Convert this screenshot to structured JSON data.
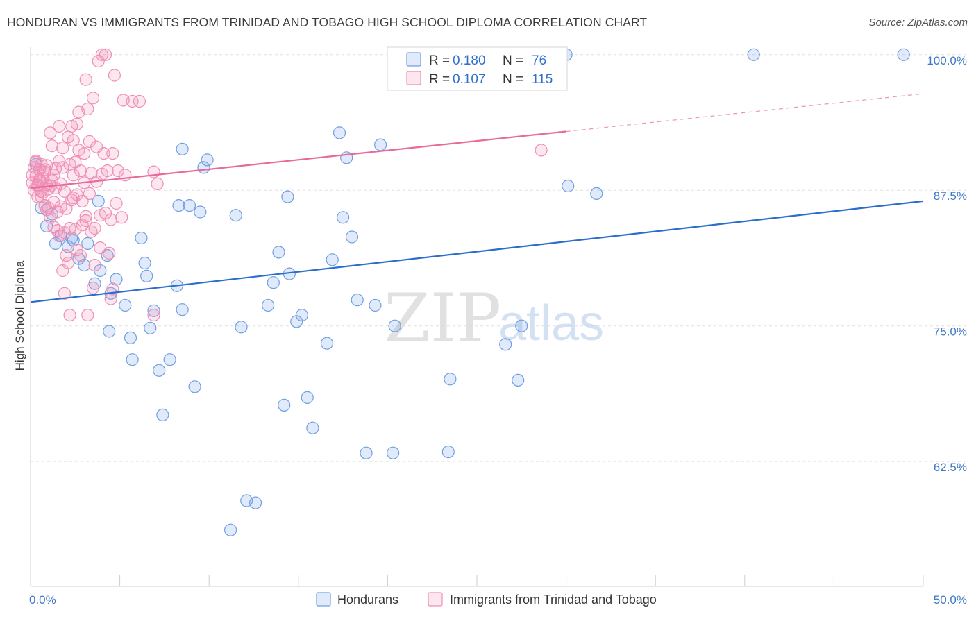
{
  "title": "HONDURAN VS IMMIGRANTS FROM TRINIDAD AND TOBAGO HIGH SCHOOL DIPLOMA CORRELATION CHART",
  "source": "Source: ZipAtlas.com",
  "watermark": {
    "zip": "ZIP",
    "atlas": "atlas"
  },
  "colors": {
    "blue_fill": "rgba(112,160,230,0.22)",
    "blue_stroke": "#6f9fe0",
    "blue_line": "#2a6dcc",
    "pink_fill": "rgba(240,140,180,0.22)",
    "pink_stroke": "#ef8fb4",
    "pink_line": "#e8699a",
    "tick_label": "#3e78c8",
    "grid": "#e0e0e0"
  },
  "legend_top": [
    {
      "r_label": "R =",
      "r_value": "0.180",
      "n_label": "N =",
      "n_value": "76"
    },
    {
      "r_label": "R =",
      "r_value": "0.107",
      "n_label": "N =",
      "n_value": "115"
    }
  ],
  "chart_data": {
    "type": "scatter",
    "title": "HONDURAN VS IMMIGRANTS FROM TRINIDAD AND TOBAGO HIGH SCHOOL DIPLOMA CORRELATION CHART",
    "xlabel": "",
    "ylabel": "High School Diploma",
    "xlim": [
      0,
      50
    ],
    "ylim": [
      51,
      101.2
    ],
    "x_ticks": [
      0,
      5,
      10,
      15,
      20,
      25,
      30,
      35,
      40,
      45,
      50
    ],
    "x_tick_labels": {
      "0": "0.0%",
      "50": "50.0%"
    },
    "y_ticks": [
      62.5,
      75.0,
      87.5,
      100.0
    ],
    "y_tick_labels": [
      "62.5%",
      "75.0%",
      "87.5%",
      "100.0%"
    ],
    "grid": true,
    "legend_position": "bottom",
    "series": [
      {
        "name": "Hondurans",
        "color": "blue",
        "trend": {
          "x": [
            0,
            50
          ],
          "y": [
            77.2,
            86.5
          ],
          "dashed_from": null
        },
        "points": [
          [
            0.3,
            89.9
          ],
          [
            0.6,
            85.9
          ],
          [
            0.9,
            84.2
          ],
          [
            1.2,
            85.3
          ],
          [
            1.4,
            82.6
          ],
          [
            1.7,
            83.3
          ],
          [
            2.1,
            82.3
          ],
          [
            2.3,
            83.1
          ],
          [
            2.7,
            81.2
          ],
          [
            3.0,
            80.6
          ],
          [
            3.2,
            82.6
          ],
          [
            3.6,
            78.9
          ],
          [
            3.9,
            80.1
          ],
          [
            4.3,
            81.5
          ],
          [
            4.4,
            74.5
          ],
          [
            4.5,
            78.0
          ],
          [
            4.8,
            79.3
          ],
          [
            5.3,
            76.9
          ],
          [
            5.6,
            73.9
          ],
          [
            5.7,
            71.9
          ],
          [
            6.2,
            83.1
          ],
          [
            6.4,
            80.8
          ],
          [
            6.5,
            79.6
          ],
          [
            6.7,
            74.8
          ],
          [
            6.9,
            76.4
          ],
          [
            7.2,
            70.9
          ],
          [
            7.4,
            66.8
          ],
          [
            7.8,
            71.9
          ],
          [
            8.2,
            78.7
          ],
          [
            8.3,
            86.1
          ],
          [
            8.5,
            76.5
          ],
          [
            8.9,
            86.1
          ],
          [
            9.2,
            69.4
          ],
          [
            9.5,
            85.5
          ],
          [
            9.7,
            89.6
          ],
          [
            9.9,
            90.3
          ],
          [
            11.5,
            85.2
          ],
          [
            11.8,
            74.9
          ],
          [
            12.1,
            58.9
          ],
          [
            12.6,
            58.7
          ],
          [
            11.2,
            56.2
          ],
          [
            13.3,
            76.9
          ],
          [
            13.6,
            79.0
          ],
          [
            13.9,
            81.8
          ],
          [
            14.2,
            67.7
          ],
          [
            14.4,
            86.9
          ],
          [
            14.5,
            79.8
          ],
          [
            14.9,
            75.4
          ],
          [
            15.2,
            76.0
          ],
          [
            15.5,
            68.4
          ],
          [
            15.8,
            65.6
          ],
          [
            16.6,
            73.4
          ],
          [
            16.9,
            81.1
          ],
          [
            17.3,
            92.8
          ],
          [
            17.5,
            85.0
          ],
          [
            17.7,
            90.5
          ],
          [
            18.0,
            83.2
          ],
          [
            18.3,
            77.4
          ],
          [
            18.8,
            63.3
          ],
          [
            19.3,
            76.9
          ],
          [
            19.6,
            91.7
          ],
          [
            20.4,
            75.0
          ],
          [
            20.3,
            63.3
          ],
          [
            23.4,
            63.4
          ],
          [
            23.5,
            70.1
          ],
          [
            8.5,
            91.3
          ],
          [
            3.8,
            86.5
          ],
          [
            2.4,
            82.9
          ],
          [
            26.6,
            73.3
          ],
          [
            27.3,
            70.0
          ],
          [
            27.5,
            75.0
          ],
          [
            30.1,
            87.9
          ],
          [
            31.7,
            87.2
          ],
          [
            30.0,
            100.0
          ],
          [
            40.5,
            100.0
          ],
          [
            48.9,
            100.0
          ]
        ]
      },
      {
        "name": "Immigrants from Trinidad and Tobago",
        "color": "pink",
        "trend": {
          "x": [
            0,
            50
          ],
          "y": [
            87.7,
            96.4
          ],
          "dashed_from": 30
        },
        "points": [
          [
            0.1,
            88.9
          ],
          [
            0.1,
            88.2
          ],
          [
            0.2,
            89.6
          ],
          [
            0.2,
            87.5
          ],
          [
            0.3,
            88.8
          ],
          [
            0.3,
            90.1
          ],
          [
            0.4,
            87.9
          ],
          [
            0.4,
            86.9
          ],
          [
            0.5,
            89.4
          ],
          [
            0.5,
            88.3
          ],
          [
            0.6,
            87.4
          ],
          [
            0.6,
            89.9
          ],
          [
            0.7,
            88.6
          ],
          [
            0.7,
            87.3
          ],
          [
            0.8,
            89.2
          ],
          [
            0.8,
            86.1
          ],
          [
            0.9,
            89.8
          ],
          [
            0.9,
            88.0
          ],
          [
            1.0,
            87.6
          ],
          [
            1.0,
            85.9
          ],
          [
            1.1,
            92.8
          ],
          [
            1.1,
            85.0
          ],
          [
            1.2,
            91.6
          ],
          [
            1.2,
            88.4
          ],
          [
            1.3,
            86.4
          ],
          [
            1.3,
            84.1
          ],
          [
            1.4,
            89.5
          ],
          [
            1.4,
            87.7
          ],
          [
            1.5,
            85.5
          ],
          [
            1.5,
            83.8
          ],
          [
            1.6,
            90.2
          ],
          [
            1.6,
            93.4
          ],
          [
            1.7,
            88.1
          ],
          [
            1.7,
            86.0
          ],
          [
            1.8,
            89.6
          ],
          [
            1.8,
            91.4
          ],
          [
            1.9,
            87.4
          ],
          [
            1.9,
            83.6
          ],
          [
            2.0,
            85.8
          ],
          [
            2.0,
            81.5
          ],
          [
            2.1,
            92.4
          ],
          [
            2.1,
            80.8
          ],
          [
            2.2,
            89.9
          ],
          [
            2.2,
            84.0
          ],
          [
            2.3,
            86.6
          ],
          [
            2.3,
            93.4
          ],
          [
            2.4,
            88.9
          ],
          [
            2.4,
            92.1
          ],
          [
            2.5,
            90.1
          ],
          [
            2.5,
            83.9
          ],
          [
            2.6,
            87.1
          ],
          [
            2.6,
            82.0
          ],
          [
            2.7,
            94.7
          ],
          [
            2.7,
            91.2
          ],
          [
            2.8,
            89.3
          ],
          [
            2.8,
            81.5
          ],
          [
            2.9,
            86.5
          ],
          [
            2.9,
            84.3
          ],
          [
            3.0,
            88.2
          ],
          [
            3.0,
            90.9
          ],
          [
            3.1,
            97.7
          ],
          [
            3.1,
            85.1
          ],
          [
            3.2,
            95.0
          ],
          [
            3.2,
            76.0
          ],
          [
            3.3,
            87.2
          ],
          [
            3.3,
            92.0
          ],
          [
            3.4,
            83.7
          ],
          [
            3.4,
            89.1
          ],
          [
            3.5,
            96.0
          ],
          [
            3.5,
            78.5
          ],
          [
            3.6,
            80.6
          ],
          [
            3.6,
            84.0
          ],
          [
            3.7,
            88.3
          ],
          [
            3.7,
            91.5
          ],
          [
            3.8,
            99.4
          ],
          [
            3.9,
            85.2
          ],
          [
            4.0,
            100.0
          ],
          [
            4.0,
            89.0
          ],
          [
            4.1,
            90.9
          ],
          [
            4.2,
            85.4
          ],
          [
            4.2,
            100.0
          ],
          [
            4.3,
            89.3
          ],
          [
            4.4,
            81.7
          ],
          [
            4.5,
            84.8
          ],
          [
            4.5,
            77.5
          ],
          [
            4.6,
            90.9
          ],
          [
            4.7,
            98.1
          ],
          [
            4.8,
            86.3
          ],
          [
            4.9,
            89.3
          ],
          [
            5.2,
            95.8
          ],
          [
            5.3,
            88.9
          ],
          [
            5.7,
            95.7
          ],
          [
            6.1,
            95.7
          ],
          [
            6.9,
            76.0
          ],
          [
            6.9,
            89.2
          ],
          [
            7.1,
            88.1
          ],
          [
            0.3,
            90.2
          ],
          [
            0.5,
            88.5
          ],
          [
            0.8,
            89.4
          ],
          [
            1.3,
            88.9
          ],
          [
            1.9,
            78.0
          ],
          [
            2.6,
            93.6
          ],
          [
            2.2,
            76.0
          ],
          [
            1.8,
            80.1
          ],
          [
            1.1,
            87.9
          ],
          [
            0.6,
            86.9
          ],
          [
            0.4,
            88.0
          ],
          [
            0.9,
            85.7
          ],
          [
            1.6,
            83.3
          ],
          [
            2.4,
            86.8
          ],
          [
            3.1,
            84.7
          ],
          [
            3.9,
            82.2
          ],
          [
            4.6,
            78.4
          ],
          [
            5.1,
            85.0
          ],
          [
            28.6,
            91.2
          ]
        ]
      }
    ]
  }
}
